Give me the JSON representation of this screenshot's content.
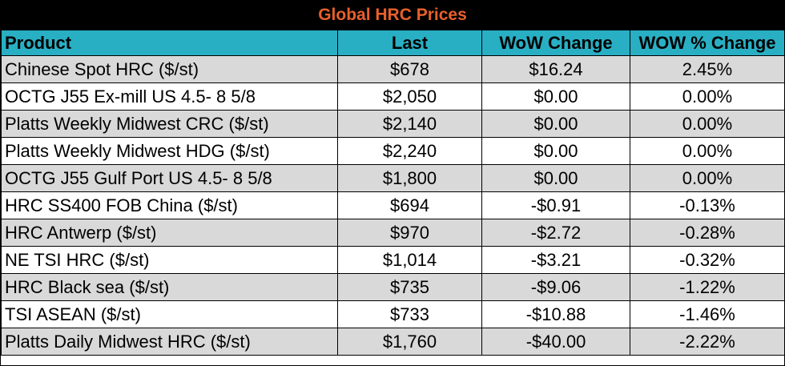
{
  "chart_data": {
    "type": "table",
    "title": "Global HRC Prices",
    "columns": [
      "Product",
      "Last",
      "WoW Change",
      "WOW % Change"
    ],
    "rows": [
      [
        "Chinese Spot HRC ($/st)",
        "$678",
        "$16.24",
        "2.45%"
      ],
      [
        "OCTG J55 Ex-mill US 4.5- 8 5/8",
        "$2,050",
        "$0.00",
        "0.00%"
      ],
      [
        "Platts Weekly Midwest CRC ($/st)",
        "$2,140",
        "$0.00",
        "0.00%"
      ],
      [
        "Platts Weekly Midwest HDG ($/st)",
        "$2,240",
        "$0.00",
        "0.00%"
      ],
      [
        "OCTG J55 Gulf Port US 4.5- 8 5/8",
        "$1,800",
        "$0.00",
        "0.00%"
      ],
      [
        "HRC SS400 FOB China ($/st)",
        "$694",
        "-$0.91",
        "-0.13%"
      ],
      [
        "HRC Antwerp ($/st)",
        "$970",
        "-$2.72",
        "-0.28%"
      ],
      [
        "NE TSI HRC ($/st)",
        "$1,014",
        "-$3.21",
        "-0.32%"
      ],
      [
        "HRC Black sea ($/st)",
        "$735",
        "-$9.06",
        "-1.22%"
      ],
      [
        "TSI ASEAN ($/st)",
        "$733",
        "-$10.88",
        "-1.46%"
      ],
      [
        "Platts Daily Midwest HRC ($/st)",
        "$1,760",
        "-$40.00",
        "-2.22%"
      ]
    ]
  },
  "colors": {
    "title_bg": "#000000",
    "title_text": "#E8602C",
    "header_bg": "#29AFC4",
    "header_text": "#000000",
    "row_odd_bg": "#D9D9D9",
    "row_even_bg": "#FFFFFF"
  }
}
